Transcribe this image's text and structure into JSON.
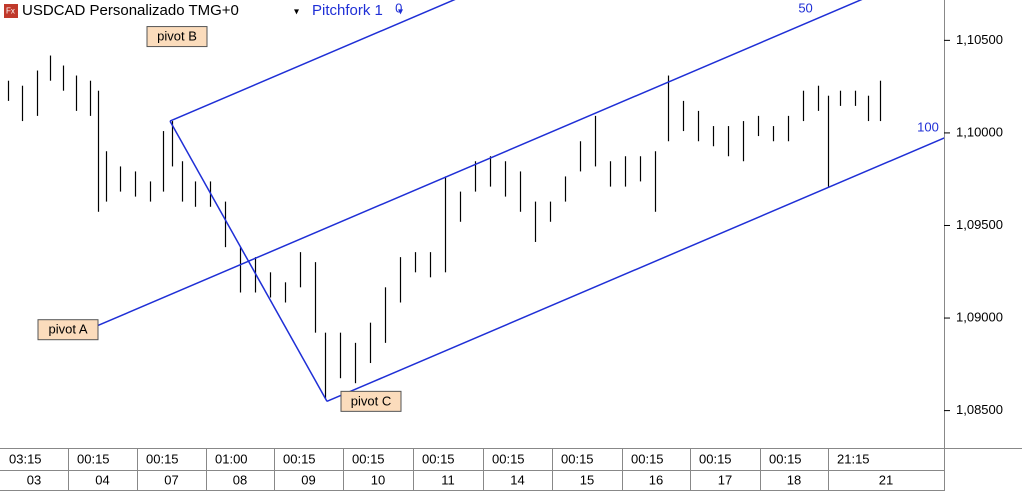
{
  "chart_data": {
    "type": "range-bar",
    "title": "USDCAD Personalizado TMG+0",
    "xlim": [
      0,
      944
    ],
    "ylim": [
      1.08298,
      1.10718
    ],
    "yticks": [
      {
        "value": 1.105,
        "label": "1,10500"
      },
      {
        "value": 1.1,
        "label": "1,10000"
      },
      {
        "value": 1.095,
        "label": "1,09500"
      },
      {
        "value": 1.09,
        "label": "1,09000"
      },
      {
        "value": 1.085,
        "label": "1,08500"
      }
    ],
    "xticks": [
      {
        "value": 0,
        "label": "03:15"
      },
      {
        "value": 68,
        "label": "00:15"
      },
      {
        "value": 137,
        "label": "00:15"
      },
      {
        "value": 206,
        "label": "01:00"
      },
      {
        "value": 274,
        "label": "00:15"
      },
      {
        "value": 343,
        "label": "00:15"
      },
      {
        "value": 413,
        "label": "00:15"
      },
      {
        "value": 483,
        "label": "00:15"
      },
      {
        "value": 552,
        "label": "00:15"
      },
      {
        "value": 622,
        "label": "00:15"
      },
      {
        "value": 690,
        "label": "00:15"
      },
      {
        "value": 760,
        "label": "00:15"
      },
      {
        "value": 828,
        "label": "21:15"
      }
    ],
    "xticks_dates": [
      {
        "value": 0,
        "label": "03"
      },
      {
        "value": 68,
        "label": "04"
      },
      {
        "value": 137,
        "label": "07"
      },
      {
        "value": 206,
        "label": "08"
      },
      {
        "value": 274,
        "label": "09"
      },
      {
        "value": 343,
        "label": "10"
      },
      {
        "value": 413,
        "label": "11"
      },
      {
        "value": 483,
        "label": "14"
      },
      {
        "value": 552,
        "label": "15"
      },
      {
        "value": 622,
        "label": "16"
      },
      {
        "value": 690,
        "label": "17"
      },
      {
        "value": 760,
        "label": "18"
      },
      {
        "value": 828,
        "label": "21"
      }
    ],
    "color": "#000000",
    "x": [
      8,
      22,
      37,
      50,
      63,
      76,
      90,
      98,
      106,
      120,
      135,
      150,
      163,
      172,
      182,
      195,
      210,
      225,
      240,
      255,
      270,
      285,
      300,
      315,
      325,
      340,
      355,
      370,
      385,
      400,
      415,
      430,
      445,
      460,
      475,
      490,
      505,
      520,
      535,
      550,
      565,
      580,
      595,
      610,
      625,
      640,
      655,
      668,
      683,
      698,
      713,
      728,
      743,
      758,
      773,
      788,
      803,
      818,
      828,
      840,
      855,
      868,
      880
    ],
    "highs": [
      1.10282,
      1.10255,
      1.10337,
      1.10418,
      1.10364,
      1.1031,
      1.10282,
      1.10228,
      1.09901,
      1.09819,
      1.09792,
      1.09738,
      1.1001,
      1.10064,
      1.09847,
      1.09738,
      1.09738,
      1.09629,
      1.09383,
      1.09329,
      1.09247,
      1.09193,
      1.09356,
      1.09302,
      1.08921,
      1.08921,
      1.08866,
      1.08975,
      1.09166,
      1.09329,
      1.09356,
      1.09356,
      1.09765,
      1.09683,
      1.09847,
      1.09874,
      1.09847,
      1.09792,
      1.09629,
      1.09629,
      1.09765,
      1.09955,
      1.10092,
      1.09847,
      1.09874,
      1.09874,
      1.09901,
      1.1031,
      1.10173,
      1.10119,
      1.10037,
      1.10037,
      1.10064,
      1.10092,
      1.10037,
      1.10092,
      1.10228,
      1.10255,
      1.10201,
      1.10228,
      1.10228,
      1.10201,
      1.10282
    ],
    "lows": [
      1.10173,
      1.10064,
      1.10092,
      1.10282,
      1.10228,
      1.10119,
      1.10092,
      1.09574,
      1.09629,
      1.09683,
      1.09656,
      1.09629,
      1.09683,
      1.09819,
      1.09629,
      1.09601,
      1.09601,
      1.09383,
      1.09138,
      1.09138,
      1.09111,
      1.09084,
      1.09166,
      1.08921,
      1.08566,
      1.08675,
      1.08648,
      1.08757,
      1.08866,
      1.09084,
      1.09247,
      1.0922,
      1.09247,
      1.0952,
      1.09683,
      1.0971,
      1.09656,
      1.09574,
      1.09411,
      1.0952,
      1.09629,
      1.09792,
      1.09819,
      1.0971,
      1.0971,
      1.09738,
      1.09574,
      1.09955,
      1.1001,
      1.09955,
      1.09928,
      1.09874,
      1.09847,
      1.09983,
      1.09955,
      1.09955,
      1.10064,
      1.10119,
      1.0971,
      1.10146,
      1.10146,
      1.10064,
      1.10064
    ],
    "pitchfork": {
      "name": "Pitchfork 1",
      "color": "#1f2fd6",
      "levels": [
        0,
        50,
        100
      ],
      "pivots": [
        {
          "label": "pivot A",
          "x": 88,
          "y": 1.08937
        },
        {
          "label": "pivot B",
          "x": 170,
          "y": 1.10064
        },
        {
          "label": "pivot C",
          "x": 327,
          "y": 1.0855
        }
      ]
    }
  }
}
